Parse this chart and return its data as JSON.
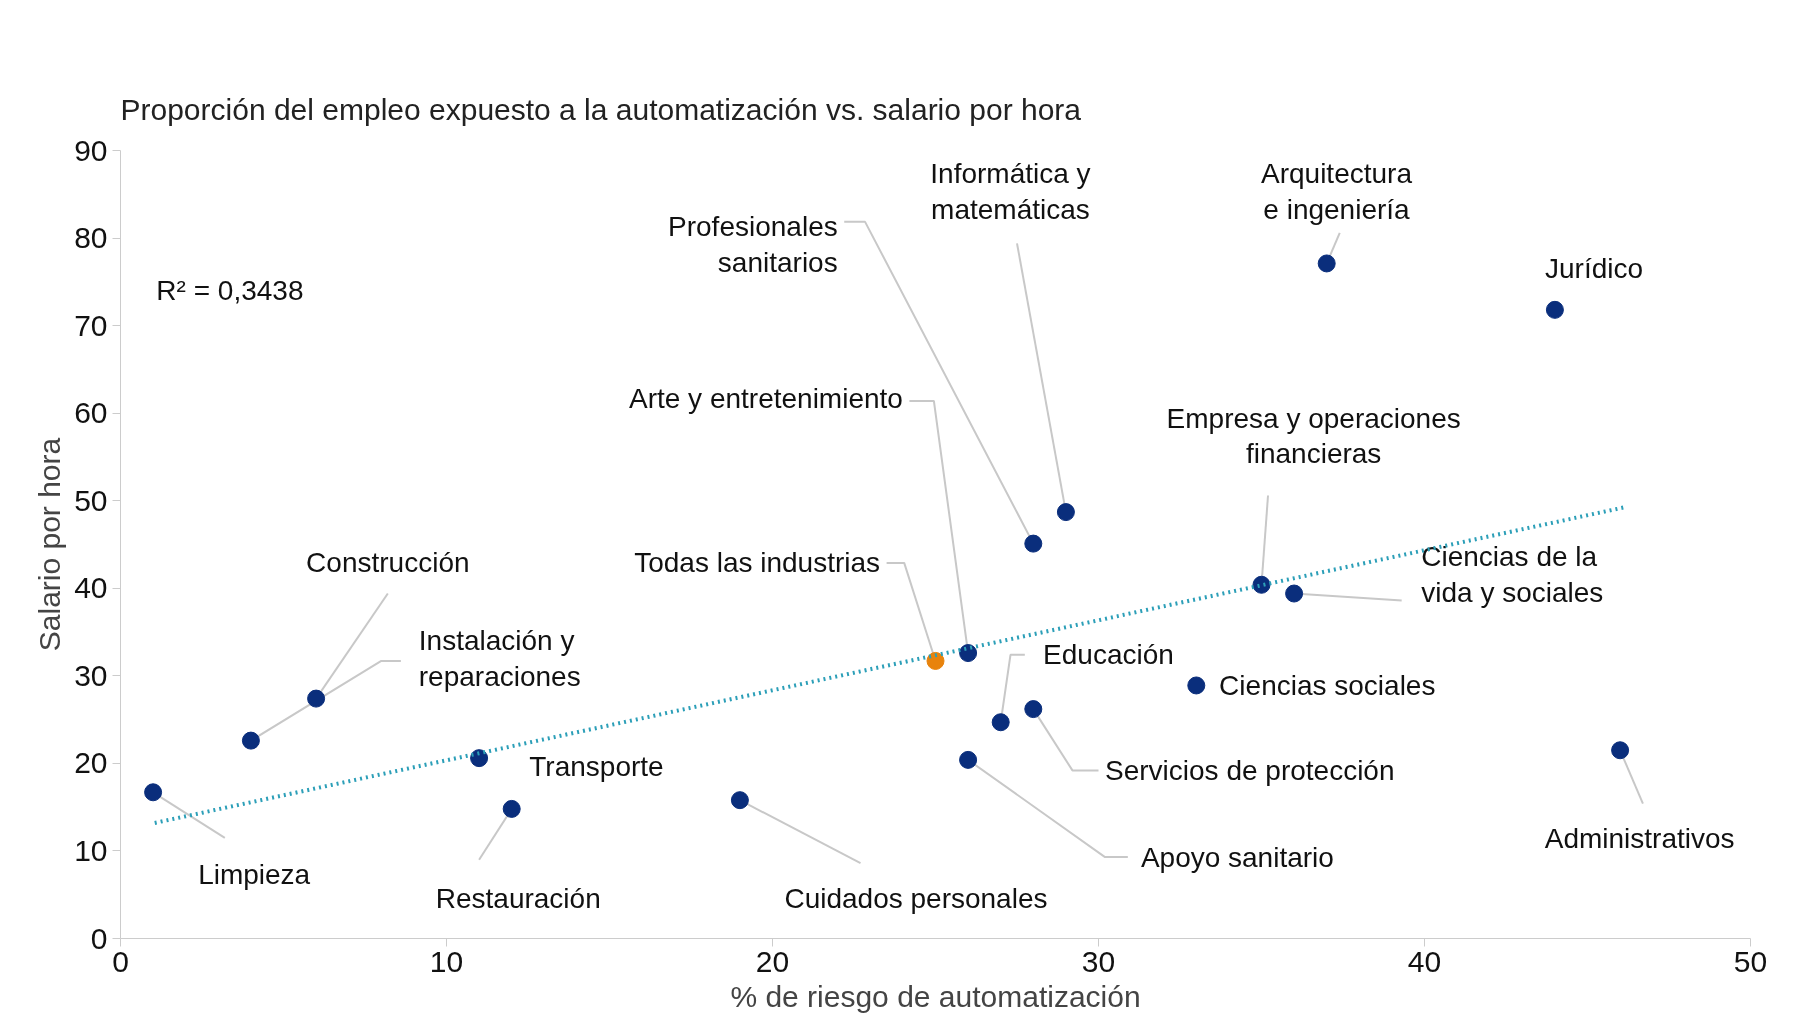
{
  "chart_data": {
    "type": "scatter",
    "title": "Proporción del empleo expuesto a la automatización vs. salario por hora",
    "xlabel": "% de riesgo de automatización",
    "ylabel": "Salario por hora",
    "xlim": [
      0,
      50
    ],
    "xticks": [
      0,
      10,
      20,
      30,
      40,
      50
    ],
    "ylim": [
      0,
      90
    ],
    "yticks": [
      0,
      10,
      20,
      30,
      40,
      50,
      60,
      70,
      80,
      90
    ],
    "grid": false,
    "marker": "circle",
    "series": [
      {
        "color": "#0a2e7c",
        "x": [
          1,
          4,
          6,
          11,
          12,
          19,
          26,
          28,
          29,
          37,
          44,
          35,
          36,
          33,
          27,
          28,
          26,
          46
        ],
        "values": [
          16.7,
          22.6,
          27.4,
          20.6,
          14.8,
          15.8,
          32.6,
          45.1,
          48.7,
          77.1,
          71.8,
          40.4,
          39.4,
          28.9,
          24.7,
          26.2,
          20.4,
          21.5
        ]
      },
      {
        "color": "#e8830c",
        "x": [
          25
        ],
        "values": [
          31.7
        ]
      },
      {
        "type": "line",
        "color": "#2c9fb8",
        "line_style": "dotted",
        "marker": "none",
        "x": [
          1.05,
          46.2
        ],
        "values": [
          13.2,
          49.3
        ]
      }
    ],
    "annotations": [
      "R² = 0,3438",
      {
        "text": "Limpieza",
        "x": 1,
        "y": 16.7
      },
      {
        "text": "Instalación y\nreparaciones",
        "x": 4,
        "y": 22.6
      },
      {
        "text": "Construcción",
        "x": 6,
        "y": 27.4
      },
      {
        "text": "Transporte",
        "x": 11,
        "y": 20.6
      },
      {
        "text": "Restauración",
        "x": 12,
        "y": 14.8
      },
      {
        "text": "Cuidados personales",
        "x": 19,
        "y": 15.8
      },
      {
        "text": "Arte y entretenimiento",
        "x": 26,
        "y": 32.6
      },
      {
        "text": "Profesionales\nsanitarios",
        "x": 28,
        "y": 45.1
      },
      {
        "text": "Informática y\nmatemáticas",
        "x": 29,
        "y": 48.7
      },
      {
        "text": "Arquitectura\ne ingeniería",
        "x": 37,
        "y": 77.1
      },
      {
        "text": "Jurídico",
        "x": 44,
        "y": 71.8
      },
      {
        "text": "Empresa y operaciones\nfinancieras",
        "x": 35,
        "y": 40.4
      },
      {
        "text": "Ciencias de la\nvida y sociales",
        "x": 36,
        "y": 39.4
      },
      {
        "text": "Ciencias sociales",
        "x": 33,
        "y": 28.9
      },
      {
        "text": "Educación",
        "x": 27,
        "y": 24.7
      },
      {
        "text": "Servicios de protección",
        "x": 28,
        "y": 26.2
      },
      {
        "text": "Apoyo sanitario",
        "x": 26,
        "y": 20.4
      },
      {
        "text": "Administrativos",
        "x": 46,
        "y": 21.5
      },
      {
        "text": "Todas las industrias",
        "x": 25,
        "y": 31.7
      }
    ]
  }
}
